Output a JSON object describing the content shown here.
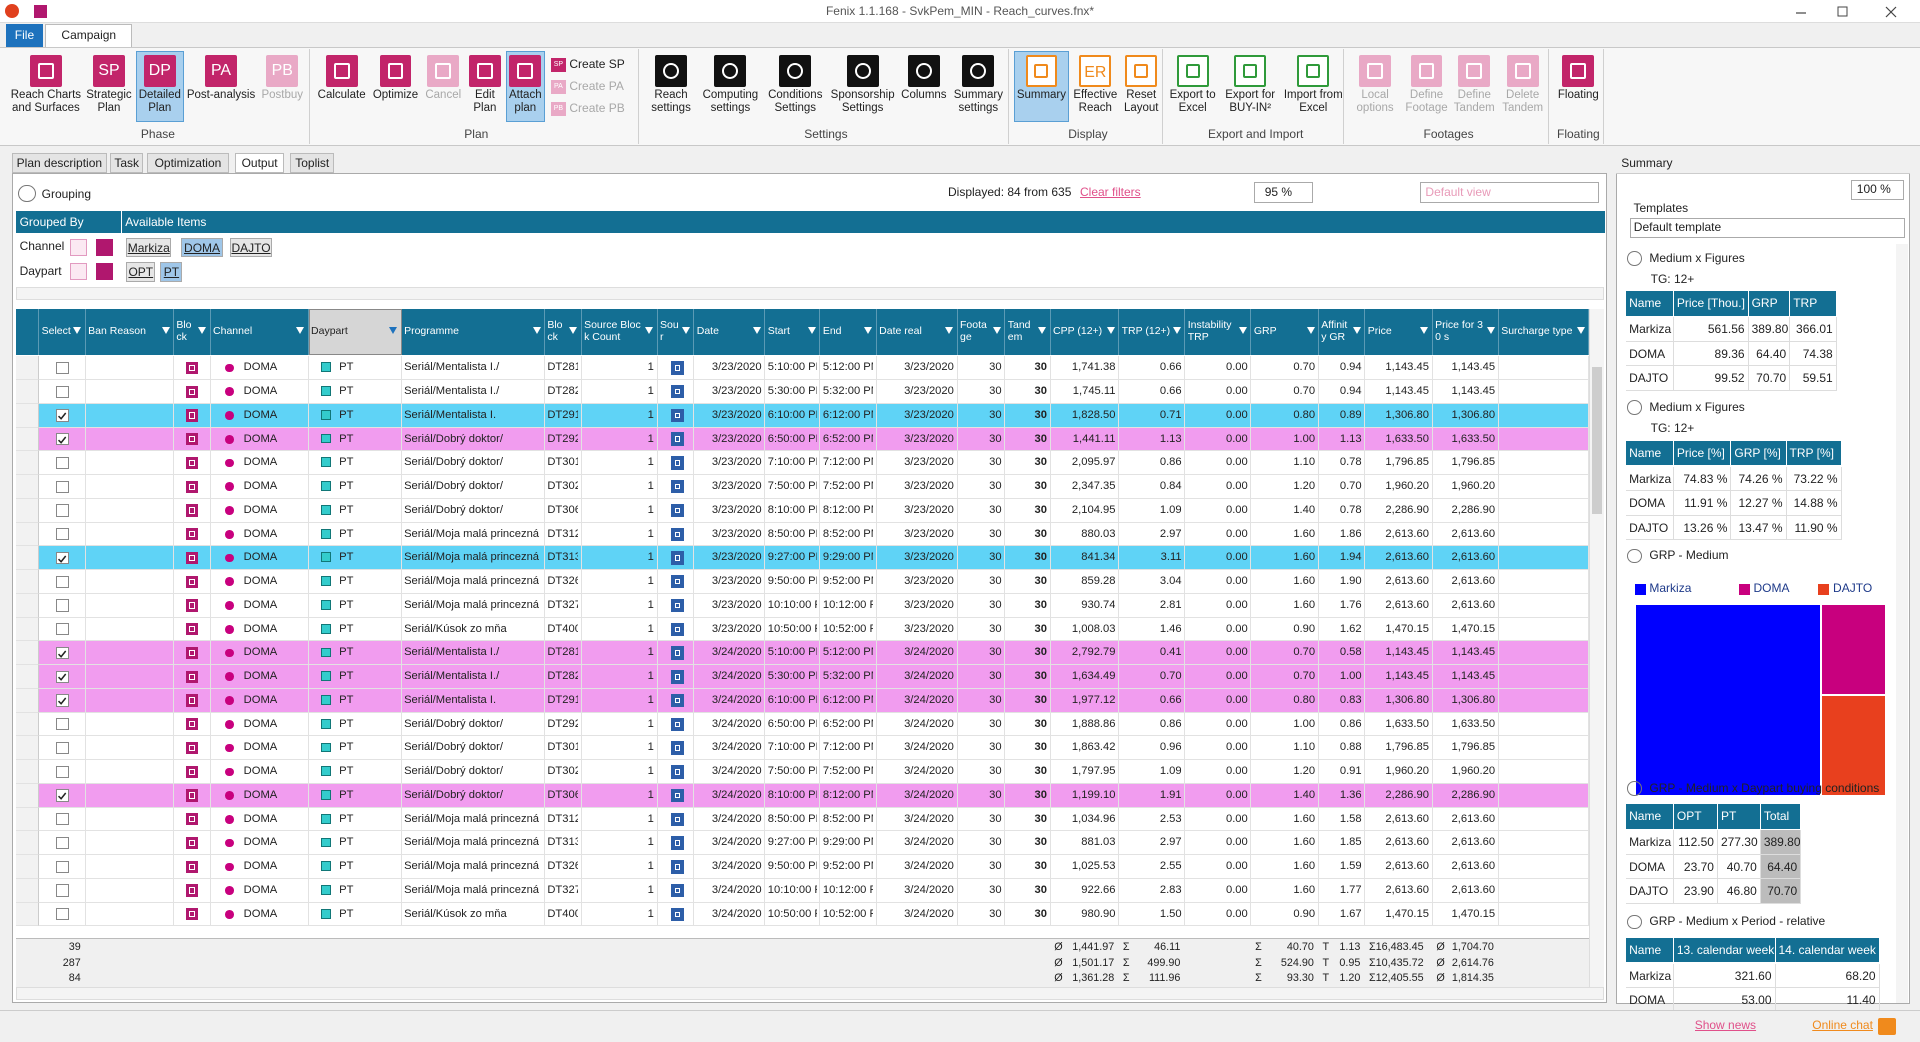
{
  "window": {
    "title": "Fenix 1.1.168 - SvkPem_MIN - Reach_curves.fnx*"
  },
  "menu": [
    "File",
    "Campaign"
  ],
  "ribbon": [
    {
      "name": "Phase",
      "buttons": [
        {
          "label": "Reach Charts and Surfaces"
        },
        {
          "label": "Strategic Plan",
          "icon": "SP"
        },
        {
          "label": "Detailed Plan",
          "icon": "DP",
          "active": true
        },
        {
          "label": "Post-analysis",
          "icon": "PA"
        },
        {
          "label": "Postbuy",
          "icon": "PB",
          "disabled": true
        }
      ]
    },
    {
      "name": "Plan",
      "buttons": [
        {
          "label": "Calculate"
        },
        {
          "label": "Optimize"
        },
        {
          "label": "Cancel",
          "disabled": true
        },
        {
          "label": "Edit Plan"
        },
        {
          "label": "Attach plan",
          "active": true
        },
        {
          "label": "Create SP",
          "small": true,
          "icon": "SP"
        },
        {
          "label": "Create PA",
          "small": true,
          "icon": "PA",
          "disabled": true
        },
        {
          "label": "Create PB",
          "small": true,
          "icon": "PB",
          "disabled": true
        }
      ]
    },
    {
      "name": "Settings",
      "buttons": [
        {
          "label": "Reach settings"
        },
        {
          "label": "Computing settings"
        },
        {
          "label": "Conditions Settings"
        },
        {
          "label": "Sponsorship Settings"
        },
        {
          "label": "Columns"
        },
        {
          "label": "Summary settings"
        }
      ]
    },
    {
      "name": "Display",
      "buttons": [
        {
          "label": "Summary",
          "active": true
        },
        {
          "label": "Effective Reach",
          "icon": "ER"
        },
        {
          "label": "Reset Layout"
        }
      ]
    },
    {
      "name": "Export and Import",
      "buttons": [
        {
          "label": "Export to Excel"
        },
        {
          "label": "Export for BUY-IN²"
        },
        {
          "label": "Import from Excel"
        }
      ]
    },
    {
      "name": "Footages",
      "buttons": [
        {
          "label": "Local options",
          "disabled": true
        },
        {
          "label": "Define Footage",
          "disabled": true
        },
        {
          "label": "Define Tandem",
          "disabled": true
        },
        {
          "label": "Delete Tandem",
          "disabled": true
        }
      ]
    },
    {
      "name": "Floating",
      "buttons": [
        {
          "label": "Floating"
        }
      ]
    }
  ],
  "tabs": {
    "items": [
      "Plan description",
      "Task",
      "Optimization",
      "Output",
      "Toplist"
    ],
    "active": 3
  },
  "grouping": {
    "title": "Grouping",
    "displayed": "Displayed: 84 from 635",
    "clear": "Clear filters",
    "zoom": "95 %",
    "view": "Default view",
    "grouped_by": "Grouped By",
    "available": "Available Items",
    "groups": [
      {
        "name": "Channel",
        "items": [
          {
            "label": "Markiza"
          },
          {
            "label": "DOMA",
            "selected": true
          },
          {
            "label": "DAJTO"
          }
        ]
      },
      {
        "name": "Daypart",
        "items": [
          {
            "label": "OPT"
          },
          {
            "label": "PT",
            "selected": true
          }
        ]
      }
    ]
  },
  "grid": {
    "columns": [
      "Select",
      "Ban Reason",
      "Block",
      "Channel",
      "Daypart",
      "Programme",
      "Block",
      "Source Block Count",
      "Sour",
      "Date",
      "Start",
      "End",
      "Date real",
      "Footage",
      "Tandem",
      "CPP (12+)",
      "TRP (12+)",
      "Instability TRP",
      "GRP",
      "Affinity GR",
      "Price",
      "Price for 30 s",
      "Surcharge type"
    ],
    "rows": [
      {
        "checked": false,
        "cells": [
          "DOMA",
          "PT",
          "Seriál/Mentalista I./",
          "DT281",
          "1",
          "3/23/2020",
          "5:10:00 PM",
          "5:12:00 PM",
          "3/23/2020",
          "30",
          "30",
          "1,741.38",
          "0.66",
          "0.00",
          "0.70",
          "0.94",
          "1,143.45",
          "1,143.45"
        ]
      },
      {
        "checked": false,
        "cells": [
          "DOMA",
          "PT",
          "Seriál/Mentalista I./",
          "DT282",
          "1",
          "3/23/2020",
          "5:30:00 PM",
          "5:32:00 PM",
          "3/23/2020",
          "30",
          "30",
          "1,745.11",
          "0.66",
          "0.00",
          "0.70",
          "0.94",
          "1,143.45",
          "1,143.45"
        ]
      },
      {
        "checked": true,
        "highlight": "cyan",
        "cells": [
          "DOMA",
          "PT",
          "Seriál/Mentalista I.",
          "DT291",
          "1",
          "3/23/2020",
          "6:10:00 PM",
          "6:12:00 PM",
          "3/23/2020",
          "30",
          "30",
          "1,828.50",
          "0.71",
          "0.00",
          "0.80",
          "0.89",
          "1,306.80",
          "1,306.80"
        ]
      },
      {
        "checked": true,
        "highlight": "pink",
        "cells": [
          "DOMA",
          "PT",
          "Seriál/Dobrý doktor/",
          "DT292",
          "1",
          "3/23/2020",
          "6:50:00 PM",
          "6:52:00 PM",
          "3/23/2020",
          "30",
          "30",
          "1,441.11",
          "1.13",
          "0.00",
          "1.00",
          "1.13",
          "1,633.50",
          "1,633.50"
        ]
      },
      {
        "checked": false,
        "cells": [
          "DOMA",
          "PT",
          "Seriál/Dobrý doktor/",
          "DT301",
          "1",
          "3/23/2020",
          "7:10:00 PM",
          "7:12:00 PM",
          "3/23/2020",
          "30",
          "30",
          "2,095.97",
          "0.86",
          "0.00",
          "1.10",
          "0.78",
          "1,796.85",
          "1,796.85"
        ]
      },
      {
        "checked": false,
        "cells": [
          "DOMA",
          "PT",
          "Seriál/Dobrý doktor/",
          "DT302",
          "1",
          "3/23/2020",
          "7:50:00 PM",
          "7:52:00 PM",
          "3/23/2020",
          "30",
          "30",
          "2,347.35",
          "0.84",
          "0.00",
          "1.20",
          "0.70",
          "1,960.20",
          "1,960.20"
        ]
      },
      {
        "checked": false,
        "cells": [
          "DOMA",
          "PT",
          "Seriál/Dobrý doktor/",
          "DT306",
          "1",
          "3/23/2020",
          "8:10:00 PM",
          "8:12:00 PM",
          "3/23/2020",
          "30",
          "30",
          "2,104.95",
          "1.09",
          "0.00",
          "1.40",
          "0.78",
          "2,286.90",
          "2,286.90"
        ]
      },
      {
        "checked": false,
        "cells": [
          "DOMA",
          "PT",
          "Seriál/Moja malá princezná",
          "DT312",
          "1",
          "3/23/2020",
          "8:50:00 PM",
          "8:52:00 PM",
          "3/23/2020",
          "30",
          "30",
          "880.03",
          "2.97",
          "0.00",
          "1.60",
          "1.86",
          "2,613.60",
          "2,613.60"
        ]
      },
      {
        "checked": true,
        "highlight": "cyan",
        "cells": [
          "DOMA",
          "PT",
          "Seriál/Moja malá princezná",
          "DT313",
          "1",
          "3/23/2020",
          "9:27:00 PM",
          "9:29:00 PM",
          "3/23/2020",
          "30",
          "30",
          "841.34",
          "3.11",
          "0.00",
          "1.60",
          "1.94",
          "2,613.60",
          "2,613.60"
        ]
      },
      {
        "checked": false,
        "cells": [
          "DOMA",
          "PT",
          "Seriál/Moja malá princezná",
          "DT326",
          "1",
          "3/23/2020",
          "9:50:00 PM",
          "9:52:00 PM",
          "3/23/2020",
          "30",
          "30",
          "859.28",
          "3.04",
          "0.00",
          "1.60",
          "1.90",
          "2,613.60",
          "2,613.60"
        ]
      },
      {
        "checked": false,
        "cells": [
          "DOMA",
          "PT",
          "Seriál/Moja malá princezná",
          "DT327",
          "1",
          "3/23/2020",
          "10:10:00 PM",
          "10:12:00 PM",
          "3/23/2020",
          "30",
          "30",
          "930.74",
          "2.81",
          "0.00",
          "1.60",
          "1.76",
          "2,613.60",
          "2,613.60"
        ]
      },
      {
        "checked": false,
        "cells": [
          "DOMA",
          "PT",
          "Seriál/Kúsok zo mňa",
          "DT400",
          "1",
          "3/23/2020",
          "10:50:00 PM",
          "10:52:00 PM",
          "3/23/2020",
          "30",
          "30",
          "1,008.03",
          "1.46",
          "0.00",
          "0.90",
          "1.62",
          "1,470.15",
          "1,470.15"
        ]
      },
      {
        "checked": true,
        "highlight": "pink",
        "cells": [
          "DOMA",
          "PT",
          "Seriál/Mentalista I./",
          "DT281",
          "1",
          "3/24/2020",
          "5:10:00 PM",
          "5:12:00 PM",
          "3/24/2020",
          "30",
          "30",
          "2,792.79",
          "0.41",
          "0.00",
          "0.70",
          "0.58",
          "1,143.45",
          "1,143.45"
        ]
      },
      {
        "checked": true,
        "highlight": "pink",
        "cells": [
          "DOMA",
          "PT",
          "Seriál/Mentalista I./",
          "DT282",
          "1",
          "3/24/2020",
          "5:30:00 PM",
          "5:32:00 PM",
          "3/24/2020",
          "30",
          "30",
          "1,634.49",
          "0.70",
          "0.00",
          "0.70",
          "1.00",
          "1,143.45",
          "1,143.45"
        ]
      },
      {
        "checked": true,
        "highlight": "pink",
        "cells": [
          "DOMA",
          "PT",
          "Seriál/Mentalista I.",
          "DT291",
          "1",
          "3/24/2020",
          "6:10:00 PM",
          "6:12:00 PM",
          "3/24/2020",
          "30",
          "30",
          "1,977.12",
          "0.66",
          "0.00",
          "0.80",
          "0.83",
          "1,306.80",
          "1,306.80"
        ]
      },
      {
        "checked": false,
        "cells": [
          "DOMA",
          "PT",
          "Seriál/Dobrý doktor/",
          "DT292",
          "1",
          "3/24/2020",
          "6:50:00 PM",
          "6:52:00 PM",
          "3/24/2020",
          "30",
          "30",
          "1,888.86",
          "0.86",
          "0.00",
          "1.00",
          "0.86",
          "1,633.50",
          "1,633.50"
        ]
      },
      {
        "checked": false,
        "cells": [
          "DOMA",
          "PT",
          "Seriál/Dobrý doktor/",
          "DT301",
          "1",
          "3/24/2020",
          "7:10:00 PM",
          "7:12:00 PM",
          "3/24/2020",
          "30",
          "30",
          "1,863.42",
          "0.96",
          "0.00",
          "1.10",
          "0.88",
          "1,796.85",
          "1,796.85"
        ]
      },
      {
        "checked": false,
        "cells": [
          "DOMA",
          "PT",
          "Seriál/Dobrý doktor/",
          "DT302",
          "1",
          "3/24/2020",
          "7:50:00 PM",
          "7:52:00 PM",
          "3/24/2020",
          "30",
          "30",
          "1,797.95",
          "1.09",
          "0.00",
          "1.20",
          "0.91",
          "1,960.20",
          "1,960.20"
        ]
      },
      {
        "checked": true,
        "highlight": "pink",
        "cells": [
          "DOMA",
          "PT",
          "Seriál/Dobrý doktor/",
          "DT306",
          "1",
          "3/24/2020",
          "8:10:00 PM",
          "8:12:00 PM",
          "3/24/2020",
          "30",
          "30",
          "1,199.10",
          "1.91",
          "0.00",
          "1.40",
          "1.36",
          "2,286.90",
          "2,286.90"
        ]
      },
      {
        "checked": false,
        "cells": [
          "DOMA",
          "PT",
          "Seriál/Moja malá princezná",
          "DT312",
          "1",
          "3/24/2020",
          "8:50:00 PM",
          "8:52:00 PM",
          "3/24/2020",
          "30",
          "30",
          "1,034.96",
          "2.53",
          "0.00",
          "1.60",
          "1.58",
          "2,613.60",
          "2,613.60"
        ]
      },
      {
        "checked": false,
        "cells": [
          "DOMA",
          "PT",
          "Seriál/Moja malá princezná",
          "DT313",
          "1",
          "3/24/2020",
          "9:27:00 PM",
          "9:29:00 PM",
          "3/24/2020",
          "30",
          "30",
          "881.03",
          "2.97",
          "0.00",
          "1.60",
          "1.85",
          "2,613.60",
          "2,613.60"
        ]
      },
      {
        "checked": false,
        "cells": [
          "DOMA",
          "PT",
          "Seriál/Moja malá princezná",
          "DT326",
          "1",
          "3/24/2020",
          "9:50:00 PM",
          "9:52:00 PM",
          "3/24/2020",
          "30",
          "30",
          "1,025.53",
          "2.55",
          "0.00",
          "1.60",
          "1.59",
          "2,613.60",
          "2,613.60"
        ]
      },
      {
        "checked": false,
        "cells": [
          "DOMA",
          "PT",
          "Seriál/Moja malá princezná",
          "DT327",
          "1",
          "3/24/2020",
          "10:10:00 PM",
          "10:12:00 PM",
          "3/24/2020",
          "30",
          "30",
          "922.66",
          "2.83",
          "0.00",
          "1.60",
          "1.77",
          "2,613.60",
          "2,613.60"
        ]
      },
      {
        "checked": false,
        "cells": [
          "DOMA",
          "PT",
          "Seriál/Kúsok zo mňa",
          "DT400",
          "1",
          "3/24/2020",
          "10:50:00 PM",
          "10:52:00 PM",
          "3/24/2020",
          "30",
          "30",
          "980.90",
          "1.50",
          "0.00",
          "0.90",
          "1.67",
          "1,470.15",
          "1,470.15"
        ]
      }
    ],
    "footer": {
      "counts": [
        "39",
        "287",
        "84"
      ],
      "cpp": [
        "Ø 1,441.97",
        "Ø 1,501.17",
        "Ø 1,361.28"
      ],
      "trp": [
        "Σ 46.11",
        "Σ 499.90",
        "Σ 111.96"
      ],
      "grp": [
        "Σ 40.70",
        "Σ 524.90",
        "Σ 93.30"
      ],
      "affinity": [
        "T 1.13",
        "T 0.95",
        "T 1.20"
      ],
      "price": [
        "Σ16,483.45",
        "Σ10,435.72",
        "Σ12,405.55"
      ],
      "price30": [
        "Ø 1,704.70",
        "Ø 2,614.76",
        "Ø 1,814.35"
      ]
    }
  },
  "summary": {
    "title": "Summary",
    "zoom": "100 %",
    "templates_label": "Templates",
    "template": "Default template",
    "sections": [
      {
        "title": "Medium x Figures",
        "tg": "TG: 12+",
        "table": {
          "header": [
            "Name",
            "Price [Thou.]",
            "GRP",
            "TRP"
          ],
          "rows": [
            [
              "Markiza",
              "561.56",
              "389.80",
              "366.01"
            ],
            [
              "DOMA",
              "89.36",
              "64.40",
              "74.38"
            ],
            [
              "DAJTO",
              "99.52",
              "70.70",
              "59.51"
            ]
          ]
        }
      },
      {
        "title": "Medium x Figures",
        "tg": "TG: 12+",
        "table": {
          "header": [
            "Name",
            "Price [%]",
            "GRP [%]",
            "TRP [%]"
          ],
          "rows": [
            [
              "Markiza",
              "74.83 %",
              "74.26 %",
              "73.22 %"
            ],
            [
              "DOMA",
              "11.91 %",
              "12.27 %",
              "14.88 %"
            ],
            [
              "DAJTO",
              "13.26 %",
              "13.47 %",
              "11.90 %"
            ]
          ]
        }
      },
      {
        "title": "GRP - Medium",
        "chart": {
          "type": "treemap",
          "categories": [
            "Markiza",
            "DOMA",
            "DAJTO"
          ],
          "values": [
            389.8,
            64.4,
            70.7
          ],
          "colors": [
            "#0000ff",
            "#c8007e",
            "#e8401e"
          ]
        }
      },
      {
        "title": "GRP - Medium x Daypart buying conditions",
        "table": {
          "header": [
            "Name",
            "OPT",
            "PT",
            "Total"
          ],
          "rows": [
            [
              "Markiza",
              "112.50",
              "277.30",
              "389.80"
            ],
            [
              "DOMA",
              "23.70",
              "40.70",
              "64.40"
            ],
            [
              "DAJTO",
              "23.90",
              "46.80",
              "70.70"
            ]
          ]
        }
      },
      {
        "title": "GRP - Medium x Period - relative",
        "table": {
          "header": [
            "Name",
            "13. calendar week",
            "14. calendar week"
          ],
          "rows": [
            [
              "Markiza",
              "321.60",
              "68.20"
            ],
            [
              "DOMA",
              "53.00",
              "11.40"
            ]
          ]
        }
      }
    ]
  },
  "status": {
    "news": "Show news",
    "chat": "Online chat"
  }
}
